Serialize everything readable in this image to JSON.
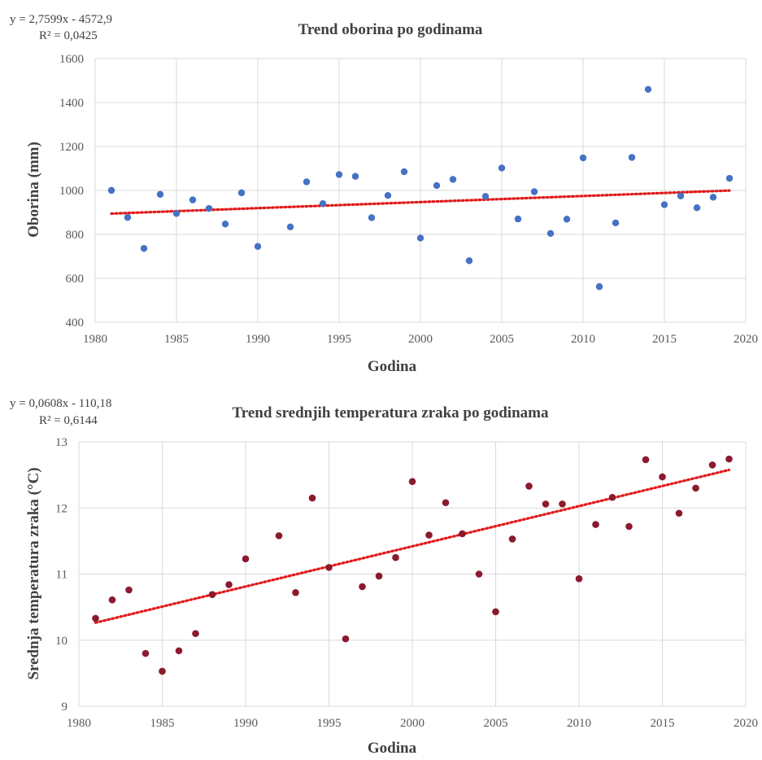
{
  "chart_data": [
    {
      "type": "scatter",
      "title": "Trend oborina po godinama",
      "xlabel": "Godina",
      "ylabel": "Oborina (mm)",
      "xlim": [
        1980,
        2020
      ],
      "ylim": [
        400,
        1600
      ],
      "x_ticks": [
        1980,
        1985,
        1990,
        1995,
        2000,
        2005,
        2010,
        2015,
        2020
      ],
      "y_ticks": [
        400,
        600,
        800,
        1000,
        1200,
        1400,
        1600
      ],
      "x_tick_labels": [
        "1980",
        "1985",
        "1990",
        "1995",
        "2000",
        "2005",
        "2010",
        "2015",
        "2020"
      ],
      "y_tick_labels": [
        "400",
        "600",
        "800",
        "1000",
        "1200",
        "1400",
        "1600"
      ],
      "grid": true,
      "trend_equation": "y = 2,7599x - 4572,9",
      "r_squared": "R² = 0,0425",
      "trendline": {
        "type": "linear",
        "slope": 2.7599,
        "intercept": -4572.9,
        "color": "#e01b1b"
      },
      "marker_color": "#4472c4",
      "series": [
        {
          "x": [
            1981,
            1982,
            1983,
            1984,
            1985,
            1986,
            1987,
            1988,
            1989,
            1990,
            1992,
            1993,
            1994,
            1995,
            1996,
            1997,
            1998,
            1999,
            2000,
            2001,
            2002,
            2003,
            2004,
            2005,
            2006,
            2007,
            2008,
            2009,
            2010,
            2011,
            2012,
            2013,
            2014,
            2015,
            2016,
            2017,
            2018,
            2019
          ],
          "y": [
            1000,
            877,
            736,
            982,
            895,
            957,
            918,
            847,
            989,
            745,
            834,
            1039,
            940,
            1072,
            1064,
            876,
            977,
            1085,
            783,
            1022,
            1050,
            680,
            973,
            1102,
            870,
            994,
            804,
            869,
            1148,
            562,
            852,
            1150,
            1460,
            935,
            975,
            921,
            969,
            1055
          ]
        }
      ]
    },
    {
      "type": "scatter",
      "title": "Trend srednjih temperatura zraka po godinama",
      "xlabel": "Godina",
      "ylabel": "Srednja temperatura zraka (°C)",
      "xlim": [
        1980,
        2020
      ],
      "ylim": [
        9,
        13
      ],
      "x_ticks": [
        1980,
        1985,
        1990,
        1995,
        2000,
        2005,
        2010,
        2015,
        2020
      ],
      "y_ticks": [
        9,
        10,
        11,
        12,
        13
      ],
      "x_tick_labels": [
        "1980",
        "1985",
        "1990",
        "1995",
        "2000",
        "2005",
        "2010",
        "2015",
        "2020"
      ],
      "y_tick_labels": [
        "9",
        "10",
        "11",
        "12",
        "13"
      ],
      "grid": true,
      "trend_equation": "y = 0,0608x - 110,18",
      "r_squared": "R² = 0,6144",
      "trendline": {
        "type": "linear",
        "slope": 0.0608,
        "intercept": -110.18,
        "color": "#e01b1b"
      },
      "marker_color": "#8b1a2e",
      "series": [
        {
          "x": [
            1981,
            1982,
            1983,
            1984,
            1985,
            1986,
            1987,
            1988,
            1989,
            1990,
            1992,
            1993,
            1994,
            1995,
            1996,
            1997,
            1998,
            1999,
            2000,
            2001,
            2002,
            2003,
            2004,
            2005,
            2006,
            2007,
            2008,
            2009,
            2010,
            2011,
            2012,
            2013,
            2014,
            2015,
            2016,
            2017,
            2018,
            2019
          ],
          "y": [
            10.33,
            10.61,
            10.76,
            9.8,
            9.53,
            9.84,
            10.1,
            10.69,
            10.84,
            11.23,
            11.58,
            10.72,
            12.15,
            11.1,
            10.02,
            10.81,
            10.97,
            11.25,
            12.4,
            11.59,
            12.08,
            11.61,
            11.0,
            10.43,
            11.53,
            12.33,
            12.06,
            12.06,
            10.93,
            11.75,
            12.16,
            11.72,
            12.73,
            12.47,
            11.92,
            12.3,
            12.65,
            12.74
          ]
        }
      ]
    }
  ]
}
